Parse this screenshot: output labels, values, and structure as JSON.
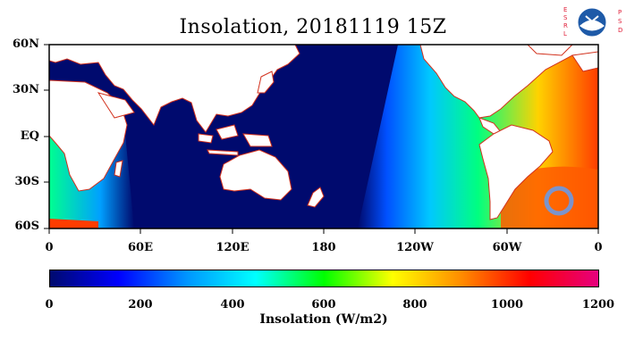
{
  "title": "Insolation, 20181119 15Z",
  "logo": {
    "left_letters": [
      "E",
      "S",
      "R",
      "L"
    ],
    "right_letters": [
      "P",
      "S",
      "D"
    ],
    "seal_text": "NOAA"
  },
  "map": {
    "lat_labels": [
      "60N",
      "30N",
      "EQ",
      "30S",
      "60S"
    ],
    "lon_labels": [
      "0",
      "60E",
      "120E",
      "180",
      "120W",
      "60W",
      "0"
    ],
    "colors": {
      "ocean_night": "#000a6e",
      "land": "#ffffff",
      "coast": "#d2321e"
    }
  },
  "colorbar": {
    "tick_labels": [
      "0",
      "200",
      "400",
      "600",
      "800",
      "1000",
      "1200"
    ],
    "title": "Insolation (W/m2)",
    "range": [
      0,
      1200
    ],
    "colors": [
      "#000a6e",
      "#0000ff",
      "#0096ff",
      "#00ffff",
      "#00ff00",
      "#ffff00",
      "#ff8c00",
      "#ff0000",
      "#e6007e"
    ]
  }
}
